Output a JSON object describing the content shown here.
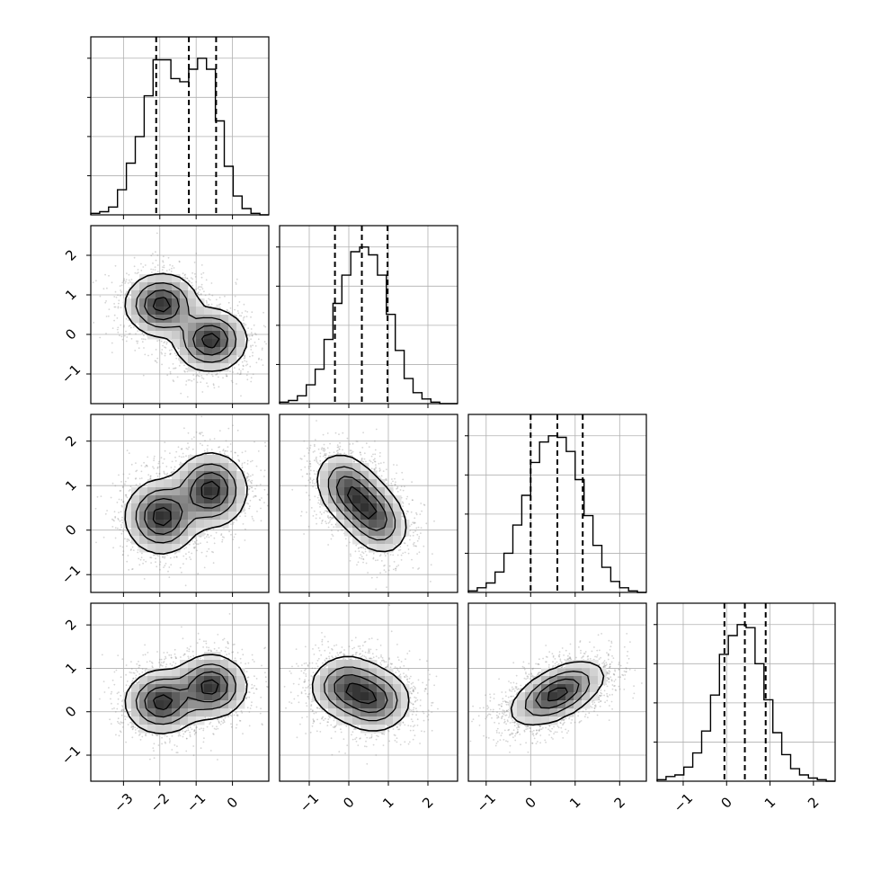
{
  "chart_data": {
    "type": "corner",
    "n_parameters": 4,
    "grid": true,
    "xlabel": "",
    "ylabel": "",
    "title": "",
    "colors": {
      "frame": "#000000",
      "grid": "#b0b0b0",
      "hist": "#000000",
      "samples": "#888888",
      "density": "#000000"
    },
    "parameters": [
      {
        "range": [
          -3.9,
          1.0
        ],
        "ticks": [
          -3,
          -2,
          -1,
          0
        ],
        "tick_labels": [
          "−3",
          "−2",
          "−1",
          "0"
        ],
        "quantiles": [
          -2.1,
          -1.2,
          -0.45
        ],
        "modes": [
          {
            "mean": -1.95,
            "sd": 0.5,
            "weight": 0.5
          },
          {
            "mean": -0.6,
            "sd": 0.5,
            "weight": 0.5
          }
        ],
        "histogram": [
          0.01,
          0.02,
          0.05,
          0.16,
          0.33,
          0.5,
          0.76,
          0.99,
          0.99,
          0.87,
          0.85,
          0.93,
          1.0,
          0.93,
          0.6,
          0.31,
          0.12,
          0.04,
          0.01,
          0.0
        ]
      },
      {
        "range": [
          -1.75,
          2.75
        ],
        "ticks": [
          -1,
          0,
          1,
          2
        ],
        "tick_labels": [
          "−1",
          "0",
          "1",
          "2"
        ],
        "quantiles": [
          -0.35,
          0.33,
          0.98
        ],
        "histogram": [
          0.01,
          0.02,
          0.05,
          0.12,
          0.22,
          0.41,
          0.64,
          0.82,
          0.97,
          1.0,
          0.95,
          0.82,
          0.57,
          0.34,
          0.16,
          0.07,
          0.03,
          0.01,
          0.0,
          0.0
        ]
      },
      {
        "range": [
          -1.4,
          2.6
        ],
        "ticks": [
          -1,
          0,
          1,
          2
        ],
        "tick_labels": [
          "−1",
          "0",
          "1",
          "2"
        ],
        "quantiles": [
          0.0,
          0.6,
          1.17
        ],
        "histogram": [
          0.01,
          0.03,
          0.06,
          0.13,
          0.25,
          0.43,
          0.62,
          0.83,
          0.96,
          1.0,
          0.99,
          0.9,
          0.72,
          0.49,
          0.3,
          0.16,
          0.07,
          0.03,
          0.01,
          0.0
        ]
      },
      {
        "range": [
          -1.6,
          2.5
        ],
        "ticks": [
          -1,
          0,
          1,
          2
        ],
        "tick_labels": [
          "−1",
          "0",
          "1",
          "2"
        ],
        "quantiles": [
          -0.05,
          0.42,
          0.9
        ],
        "histogram": [
          0.01,
          0.03,
          0.04,
          0.09,
          0.18,
          0.32,
          0.55,
          0.81,
          0.93,
          1.0,
          0.98,
          0.75,
          0.52,
          0.31,
          0.17,
          0.08,
          0.04,
          0.02,
          0.01,
          0.0
        ]
      }
    ],
    "pairs": [
      {
        "row": 1,
        "col": 0,
        "components": [
          {
            "mx": -1.95,
            "my": 0.75,
            "sx": 0.48,
            "sy": 0.38,
            "rho": 0.0,
            "w": 0.5
          },
          {
            "mx": -0.6,
            "my": -0.15,
            "sx": 0.48,
            "sy": 0.38,
            "rho": 0.0,
            "w": 0.5
          }
        ]
      },
      {
        "row": 2,
        "col": 0,
        "components": [
          {
            "mx": -1.95,
            "my": 0.3,
            "sx": 0.48,
            "sy": 0.4,
            "rho": 0.0,
            "w": 0.5
          },
          {
            "mx": -0.6,
            "my": 0.9,
            "sx": 0.48,
            "sy": 0.4,
            "rho": 0.0,
            "w": 0.5
          }
        ]
      },
      {
        "row": 2,
        "col": 1,
        "components": [
          {
            "mx": 0.0,
            "my": 0.9,
            "sx": 0.4,
            "sy": 0.4,
            "rho": -0.3,
            "w": 0.5
          },
          {
            "mx": 0.65,
            "my": 0.3,
            "sx": 0.4,
            "sy": 0.4,
            "rho": -0.3,
            "w": 0.5
          }
        ]
      },
      {
        "row": 3,
        "col": 0,
        "components": [
          {
            "mx": -1.95,
            "my": 0.22,
            "sx": 0.48,
            "sy": 0.35,
            "rho": 0.0,
            "w": 0.5
          },
          {
            "mx": -0.6,
            "my": 0.58,
            "sx": 0.48,
            "sy": 0.35,
            "rho": 0.0,
            "w": 0.5
          }
        ]
      },
      {
        "row": 3,
        "col": 1,
        "components": [
          {
            "mx": -0.05,
            "my": 0.58,
            "sx": 0.45,
            "sy": 0.35,
            "rho": 0.0,
            "w": 0.5
          },
          {
            "mx": 0.65,
            "my": 0.25,
            "sx": 0.45,
            "sy": 0.35,
            "rho": 0.0,
            "w": 0.5
          }
        ]
      },
      {
        "row": 3,
        "col": 2,
        "components": [
          {
            "mx": 0.6,
            "my": 0.42,
            "sx": 0.5,
            "sy": 0.35,
            "rho": 0.55,
            "w": 1.0
          }
        ]
      }
    ],
    "contour_levels": [
      0.12,
      0.35,
      0.62,
      0.88
    ]
  }
}
